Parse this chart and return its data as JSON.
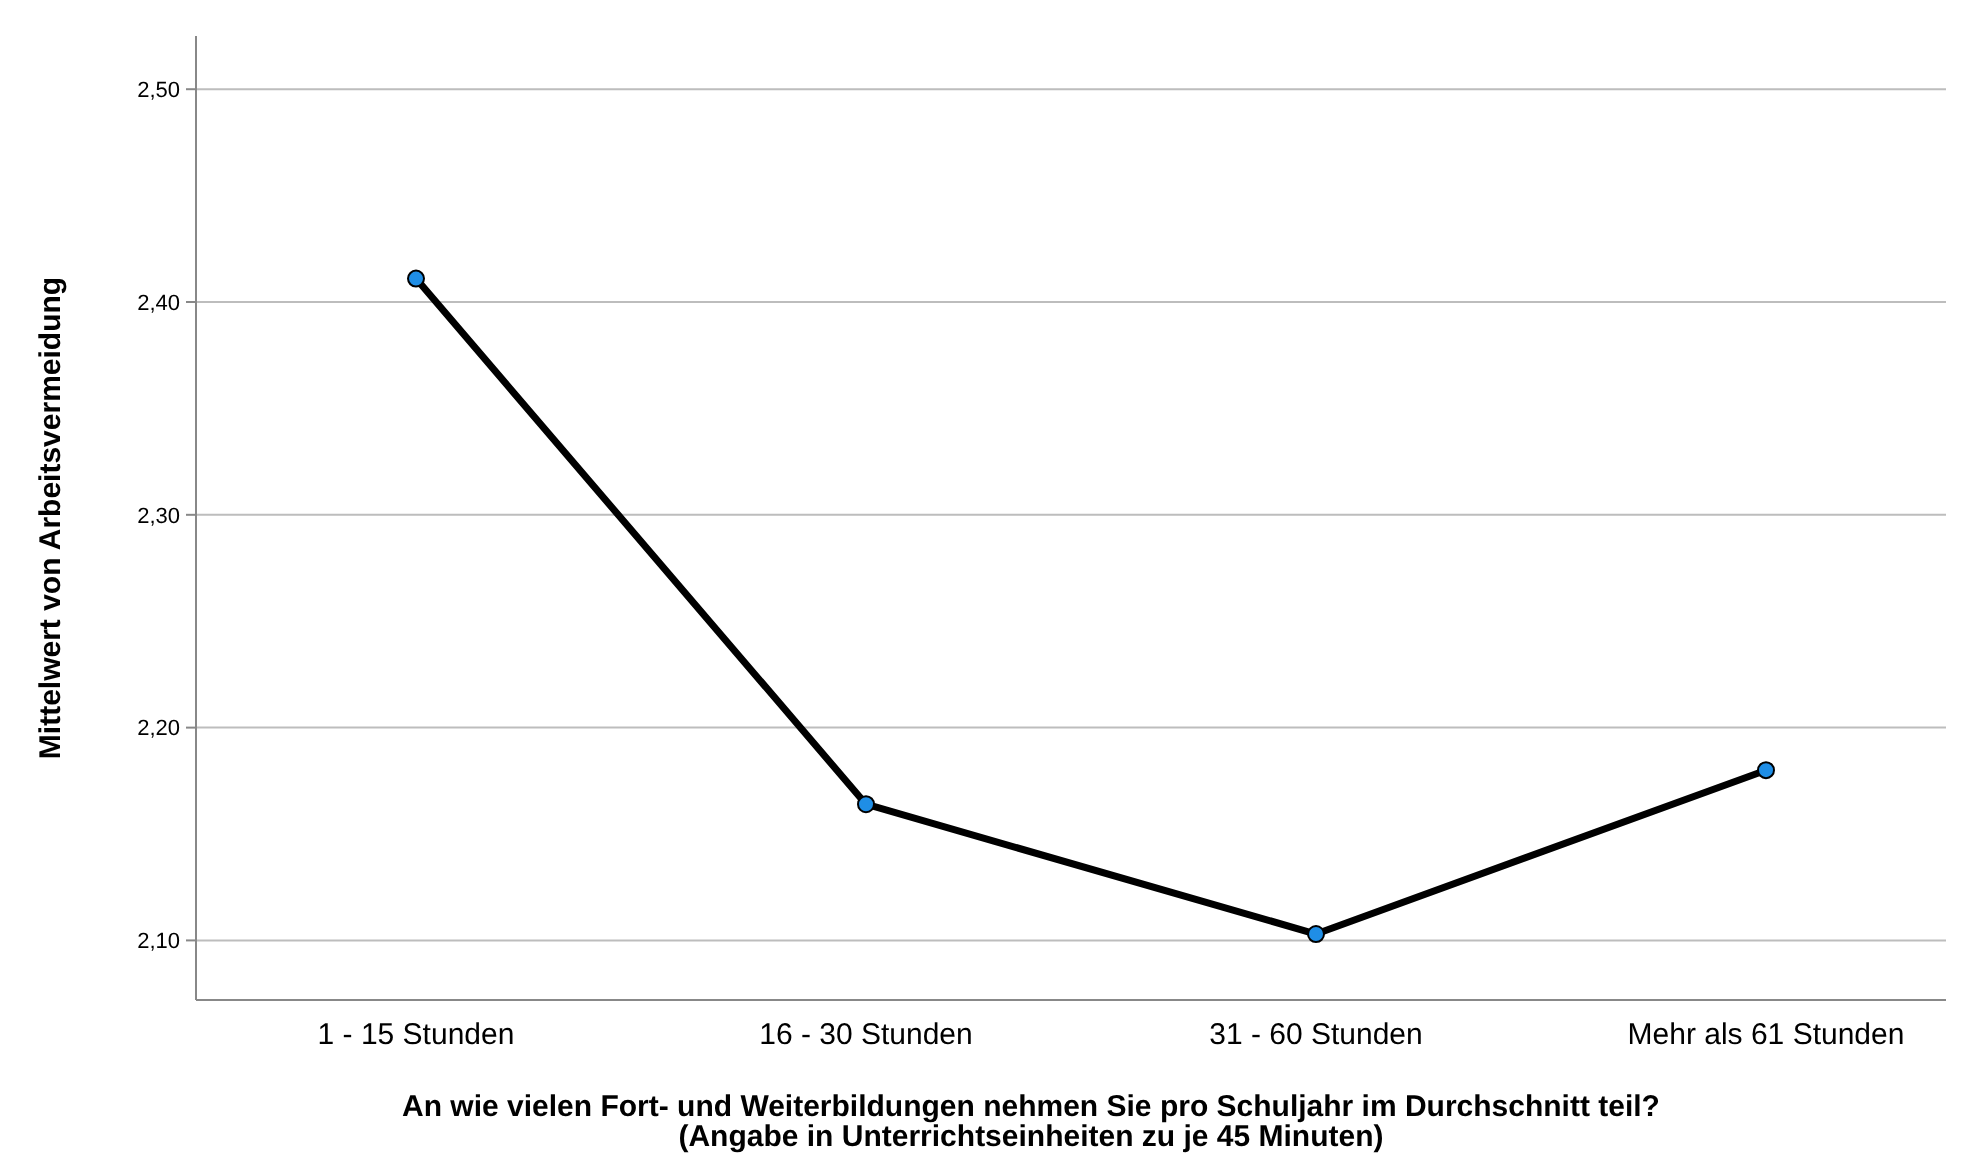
{
  "chart_data": {
    "type": "line",
    "xlabel": "An wie vielen Fort- und Weiterbildungen nehmen Sie pro Schuljahr im Durchschnitt teil?\n(Angabe in Unterrichtseinheiten zu je 45 Minuten)",
    "ylabel": "Mittelwert von Arbeitsvermeidung",
    "categories": [
      "1 - 15 Stunden",
      "16 - 30 Stunden",
      "31 - 60 Stunden",
      "Mehr als 61 Stunden"
    ],
    "series": [
      {
        "color": "#000000",
        "values": [
          2.411,
          2.164,
          2.103,
          2.18
        ]
      }
    ],
    "ylim": [
      2.072,
      2.525
    ],
    "yticks": [
      {
        "value": 2.1,
        "label": "2,10"
      },
      {
        "value": 2.2,
        "label": "2,20"
      },
      {
        "value": 2.3,
        "label": "2,30"
      },
      {
        "value": 2.4,
        "label": "2,40"
      },
      {
        "value": 2.5,
        "label": "2,50"
      }
    ],
    "grid": "y",
    "marker": "circle",
    "line_style": "solid"
  }
}
